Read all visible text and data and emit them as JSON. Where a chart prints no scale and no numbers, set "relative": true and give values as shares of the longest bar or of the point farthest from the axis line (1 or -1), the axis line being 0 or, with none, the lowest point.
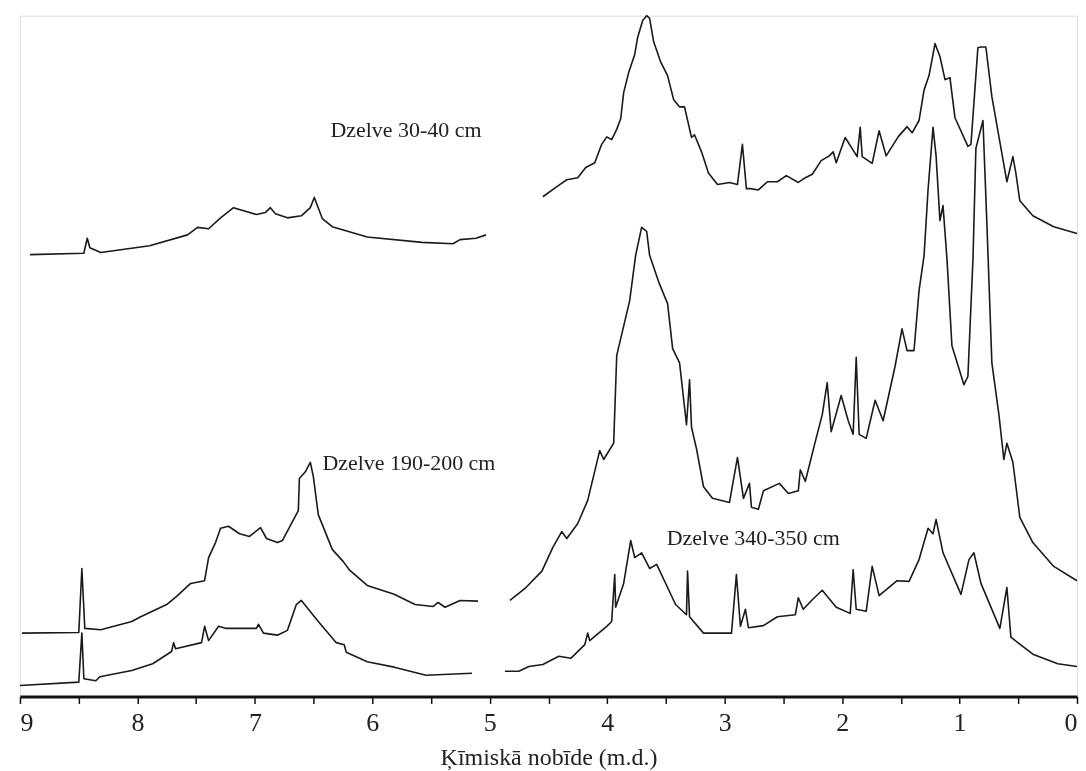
{
  "chart_data": {
    "type": "line",
    "relative": true,
    "xlabel": "Ķīmiskā nobīde (m.d.)",
    "xlim": [
      9,
      0
    ],
    "xticks": [
      9,
      {
        "value": 8.5,
        "label": null
      },
      8,
      {
        "value": 7.5,
        "label": null
      },
      7,
      {
        "value": 6.5,
        "label": null
      },
      6,
      {
        "value": 5.5,
        "label": null
      },
      5,
      {
        "value": 4.5,
        "label": null
      },
      4,
      {
        "value": 3.5,
        "label": null
      },
      3,
      {
        "value": 2.5,
        "label": null
      },
      2,
      {
        "value": 1.5,
        "label": null
      },
      1,
      {
        "value": 0.5,
        "label": null
      },
      0
    ],
    "grid": false,
    "legend": false,
    "marker": "none",
    "line_style": "solid",
    "series": [
      {
        "name": "Dzelve 30-40 cm",
        "color": "#1a1a1a",
        "x": [
          8.915,
          8.456,
          8.427,
          8.405,
          8.312,
          7.896,
          7.573,
          7.488,
          7.394,
          7.292,
          7.182,
          6.987,
          6.91,
          6.868,
          6.825,
          6.723,
          6.604,
          6.528,
          6.494,
          6.426,
          6.341,
          6.043,
          5.576,
          5.313,
          5.253,
          5.117,
          5.032,
          4.8,
          4.548,
          4.429,
          4.344,
          4.251,
          4.183,
          4.106,
          4.047,
          4.004,
          3.962,
          3.919,
          3.885,
          3.86,
          3.818,
          3.766,
          3.741,
          3.698,
          3.664,
          3.639,
          3.605,
          3.545,
          3.486,
          3.435,
          3.384,
          3.342,
          3.282,
          3.257,
          3.197,
          3.138,
          3.061,
          2.959,
          2.891,
          2.849,
          2.815,
          2.781,
          2.713,
          2.636,
          2.551,
          2.475,
          2.373,
          2.313,
          2.254,
          2.178,
          2.11,
          2.076,
          2.05,
          1.974,
          1.872,
          1.846,
          1.829,
          1.744,
          1.685,
          1.625,
          1.523,
          1.447,
          1.404,
          1.345,
          1.302,
          1.26,
          1.209,
          1.167,
          1.124,
          1.082,
          1.039,
          0.929,
          0.903,
          0.844,
          0.818,
          0.776,
          0.725,
          0.597,
          0.546,
          0.521,
          0.487,
          0.376,
          0.198,
          0.0
        ],
        "values": [
          0.649,
          0.651,
          0.673,
          0.659,
          0.652,
          0.662,
          0.678,
          0.689,
          0.687,
          0.703,
          0.718,
          0.708,
          0.711,
          0.718,
          0.709,
          0.703,
          0.706,
          0.718,
          0.733,
          0.702,
          0.69,
          0.675,
          0.667,
          0.665,
          0.671,
          0.673,
          0.678,
          null,
          0.734,
          0.749,
          0.759,
          0.762,
          0.777,
          0.784,
          0.811,
          0.822,
          0.818,
          0.833,
          0.849,
          0.887,
          0.916,
          0.943,
          0.968,
          0.993,
          1.0,
          0.996,
          0.962,
          0.932,
          0.912,
          0.877,
          0.866,
          0.866,
          0.821,
          0.825,
          0.8,
          0.769,
          0.752,
          0.755,
          0.752,
          0.811,
          0.746,
          0.746,
          0.744,
          0.756,
          0.756,
          0.765,
          0.755,
          0.762,
          0.767,
          0.787,
          0.794,
          0.8,
          0.784,
          0.821,
          0.793,
          0.836,
          0.793,
          0.783,
          0.831,
          0.794,
          0.822,
          0.837,
          0.828,
          0.846,
          0.891,
          0.912,
          0.959,
          0.94,
          0.906,
          0.909,
          0.85,
          0.808,
          0.811,
          0.953,
          0.954,
          0.954,
          0.881,
          0.756,
          0.793,
          0.769,
          0.728,
          0.706,
          0.69,
          0.68
        ]
      },
      {
        "name": "Dzelve 190-200 cm",
        "color": "#1a1a1a",
        "x": [
          8.983,
          8.499,
          8.473,
          8.448,
          8.312,
          8.048,
          7.972,
          7.751,
          7.666,
          7.547,
          7.428,
          7.394,
          7.335,
          7.292,
          7.224,
          7.131,
          7.046,
          6.952,
          6.901,
          6.808,
          6.766,
          6.63,
          6.621,
          6.57,
          6.528,
          6.502,
          6.46,
          6.341,
          6.247,
          6.196,
          6.043,
          5.814,
          5.636,
          5.483,
          5.44,
          5.381,
          5.253,
          5.1,
          4.95,
          4.828,
          4.692,
          4.556,
          4.463,
          4.387,
          4.344,
          4.251,
          4.166,
          4.064,
          4.03,
          3.945,
          3.919,
          3.809,
          3.758,
          3.707,
          3.664,
          3.639,
          3.562,
          3.486,
          3.443,
          3.384,
          3.325,
          3.299,
          3.282,
          3.24,
          3.18,
          3.104,
          2.959,
          2.891,
          2.84,
          2.789,
          2.772,
          2.713,
          2.67,
          2.534,
          2.458,
          2.373,
          2.356,
          2.313,
          2.229,
          2.169,
          2.127,
          2.093,
          2.008,
          1.948,
          1.906,
          1.88,
          1.855,
          1.795,
          1.719,
          1.651,
          1.549,
          1.49,
          1.447,
          1.388,
          1.345,
          1.302,
          1.268,
          1.226,
          1.2,
          1.167,
          1.141,
          1.107,
          1.065,
          0.963,
          0.929,
          0.886,
          0.861,
          0.801,
          0.767,
          0.725,
          0.665,
          0.623,
          0.597,
          0.546,
          0.487,
          0.376,
          0.198,
          0.0
        ],
        "values": [
          0.093,
          0.094,
          0.188,
          0.1,
          0.098,
          0.11,
          0.117,
          0.135,
          0.147,
          0.166,
          0.17,
          0.204,
          0.226,
          0.247,
          0.25,
          0.239,
          0.235,
          0.248,
          0.232,
          0.226,
          0.229,
          0.273,
          0.32,
          0.33,
          0.344,
          0.323,
          0.267,
          0.216,
          0.198,
          0.186,
          0.163,
          0.15,
          0.135,
          0.132,
          0.138,
          0.131,
          0.141,
          0.14,
          null,
          0.141,
          0.16,
          0.184,
          0.219,
          0.242,
          0.232,
          0.254,
          0.288,
          0.361,
          0.348,
          0.372,
          0.501,
          0.581,
          0.648,
          0.689,
          0.683,
          0.648,
          0.609,
          0.577,
          0.511,
          0.49,
          0.399,
          0.465,
          0.395,
          0.364,
          0.308,
          0.291,
          0.285,
          0.351,
          0.291,
          0.313,
          0.278,
          0.275,
          0.302,
          0.313,
          0.298,
          0.302,
          0.333,
          0.316,
          0.374,
          0.414,
          0.461,
          0.389,
          0.442,
          0.405,
          0.385,
          0.498,
          0.385,
          0.379,
          0.435,
          0.405,
          0.485,
          0.54,
          0.508,
          0.508,
          0.596,
          0.648,
          0.745,
          0.836,
          0.794,
          0.699,
          0.721,
          0.642,
          0.515,
          0.458,
          0.47,
          0.642,
          0.805,
          0.846,
          0.693,
          0.49,
          0.414,
          0.348,
          0.372,
          0.344,
          0.263,
          0.226,
          0.191,
          0.17
        ]
      },
      {
        "name": "Dzelve 340-350 cm",
        "color": "#1a1a1a",
        "x": [
          9.0,
          8.499,
          8.473,
          8.456,
          8.354,
          8.32,
          8.048,
          7.87,
          7.709,
          7.692,
          7.675,
          7.454,
          7.428,
          7.394,
          7.309,
          7.25,
          6.986,
          6.969,
          6.927,
          6.808,
          6.723,
          6.647,
          6.604,
          6.46,
          6.307,
          6.239,
          6.222,
          6.043,
          5.814,
          5.542,
          5.151,
          5.0,
          4.871,
          4.752,
          4.667,
          4.548,
          4.412,
          4.31,
          4.191,
          4.166,
          4.149,
          4.004,
          3.962,
          3.936,
          3.928,
          3.86,
          3.8,
          3.766,
          3.707,
          3.639,
          3.579,
          3.486,
          3.418,
          3.325,
          3.316,
          3.299,
          3.18,
          2.942,
          2.9,
          2.866,
          2.823,
          2.798,
          2.67,
          2.551,
          2.398,
          2.373,
          2.331,
          2.254,
          2.169,
          2.05,
          1.931,
          1.906,
          1.88,
          1.795,
          1.744,
          1.685,
          1.532,
          1.43,
          1.345,
          1.268,
          1.226,
          1.2,
          1.141,
          0.988,
          0.92,
          0.878,
          0.818,
          0.657,
          0.597,
          0.563,
          0.376,
          0.164,
          0.0
        ],
        "values": [
          0.016,
          0.021,
          0.093,
          0.026,
          0.023,
          0.029,
          0.038,
          0.048,
          0.066,
          0.079,
          0.07,
          0.079,
          0.103,
          0.082,
          0.103,
          0.1,
          0.1,
          0.106,
          0.093,
          0.09,
          0.097,
          0.135,
          0.141,
          0.11,
          0.079,
          0.076,
          0.065,
          0.051,
          0.043,
          0.031,
          0.034,
          null,
          0.037,
          0.037,
          0.044,
          0.047,
          0.059,
          0.056,
          0.076,
          0.093,
          0.082,
          0.103,
          0.11,
          0.179,
          0.131,
          0.166,
          0.229,
          0.204,
          0.211,
          0.188,
          0.194,
          0.16,
          0.135,
          0.12,
          0.184,
          0.117,
          0.093,
          0.093,
          0.179,
          0.103,
          0.128,
          0.101,
          0.104,
          0.117,
          0.12,
          0.145,
          0.128,
          0.142,
          0.156,
          0.131,
          0.122,
          0.186,
          0.128,
          0.125,
          0.191,
          0.148,
          0.17,
          0.169,
          0.201,
          0.247,
          0.239,
          0.26,
          0.211,
          0.15,
          0.201,
          0.211,
          0.166,
          0.1,
          0.16,
          0.087,
          0.062,
          0.048,
          0.044
        ]
      }
    ]
  }
}
